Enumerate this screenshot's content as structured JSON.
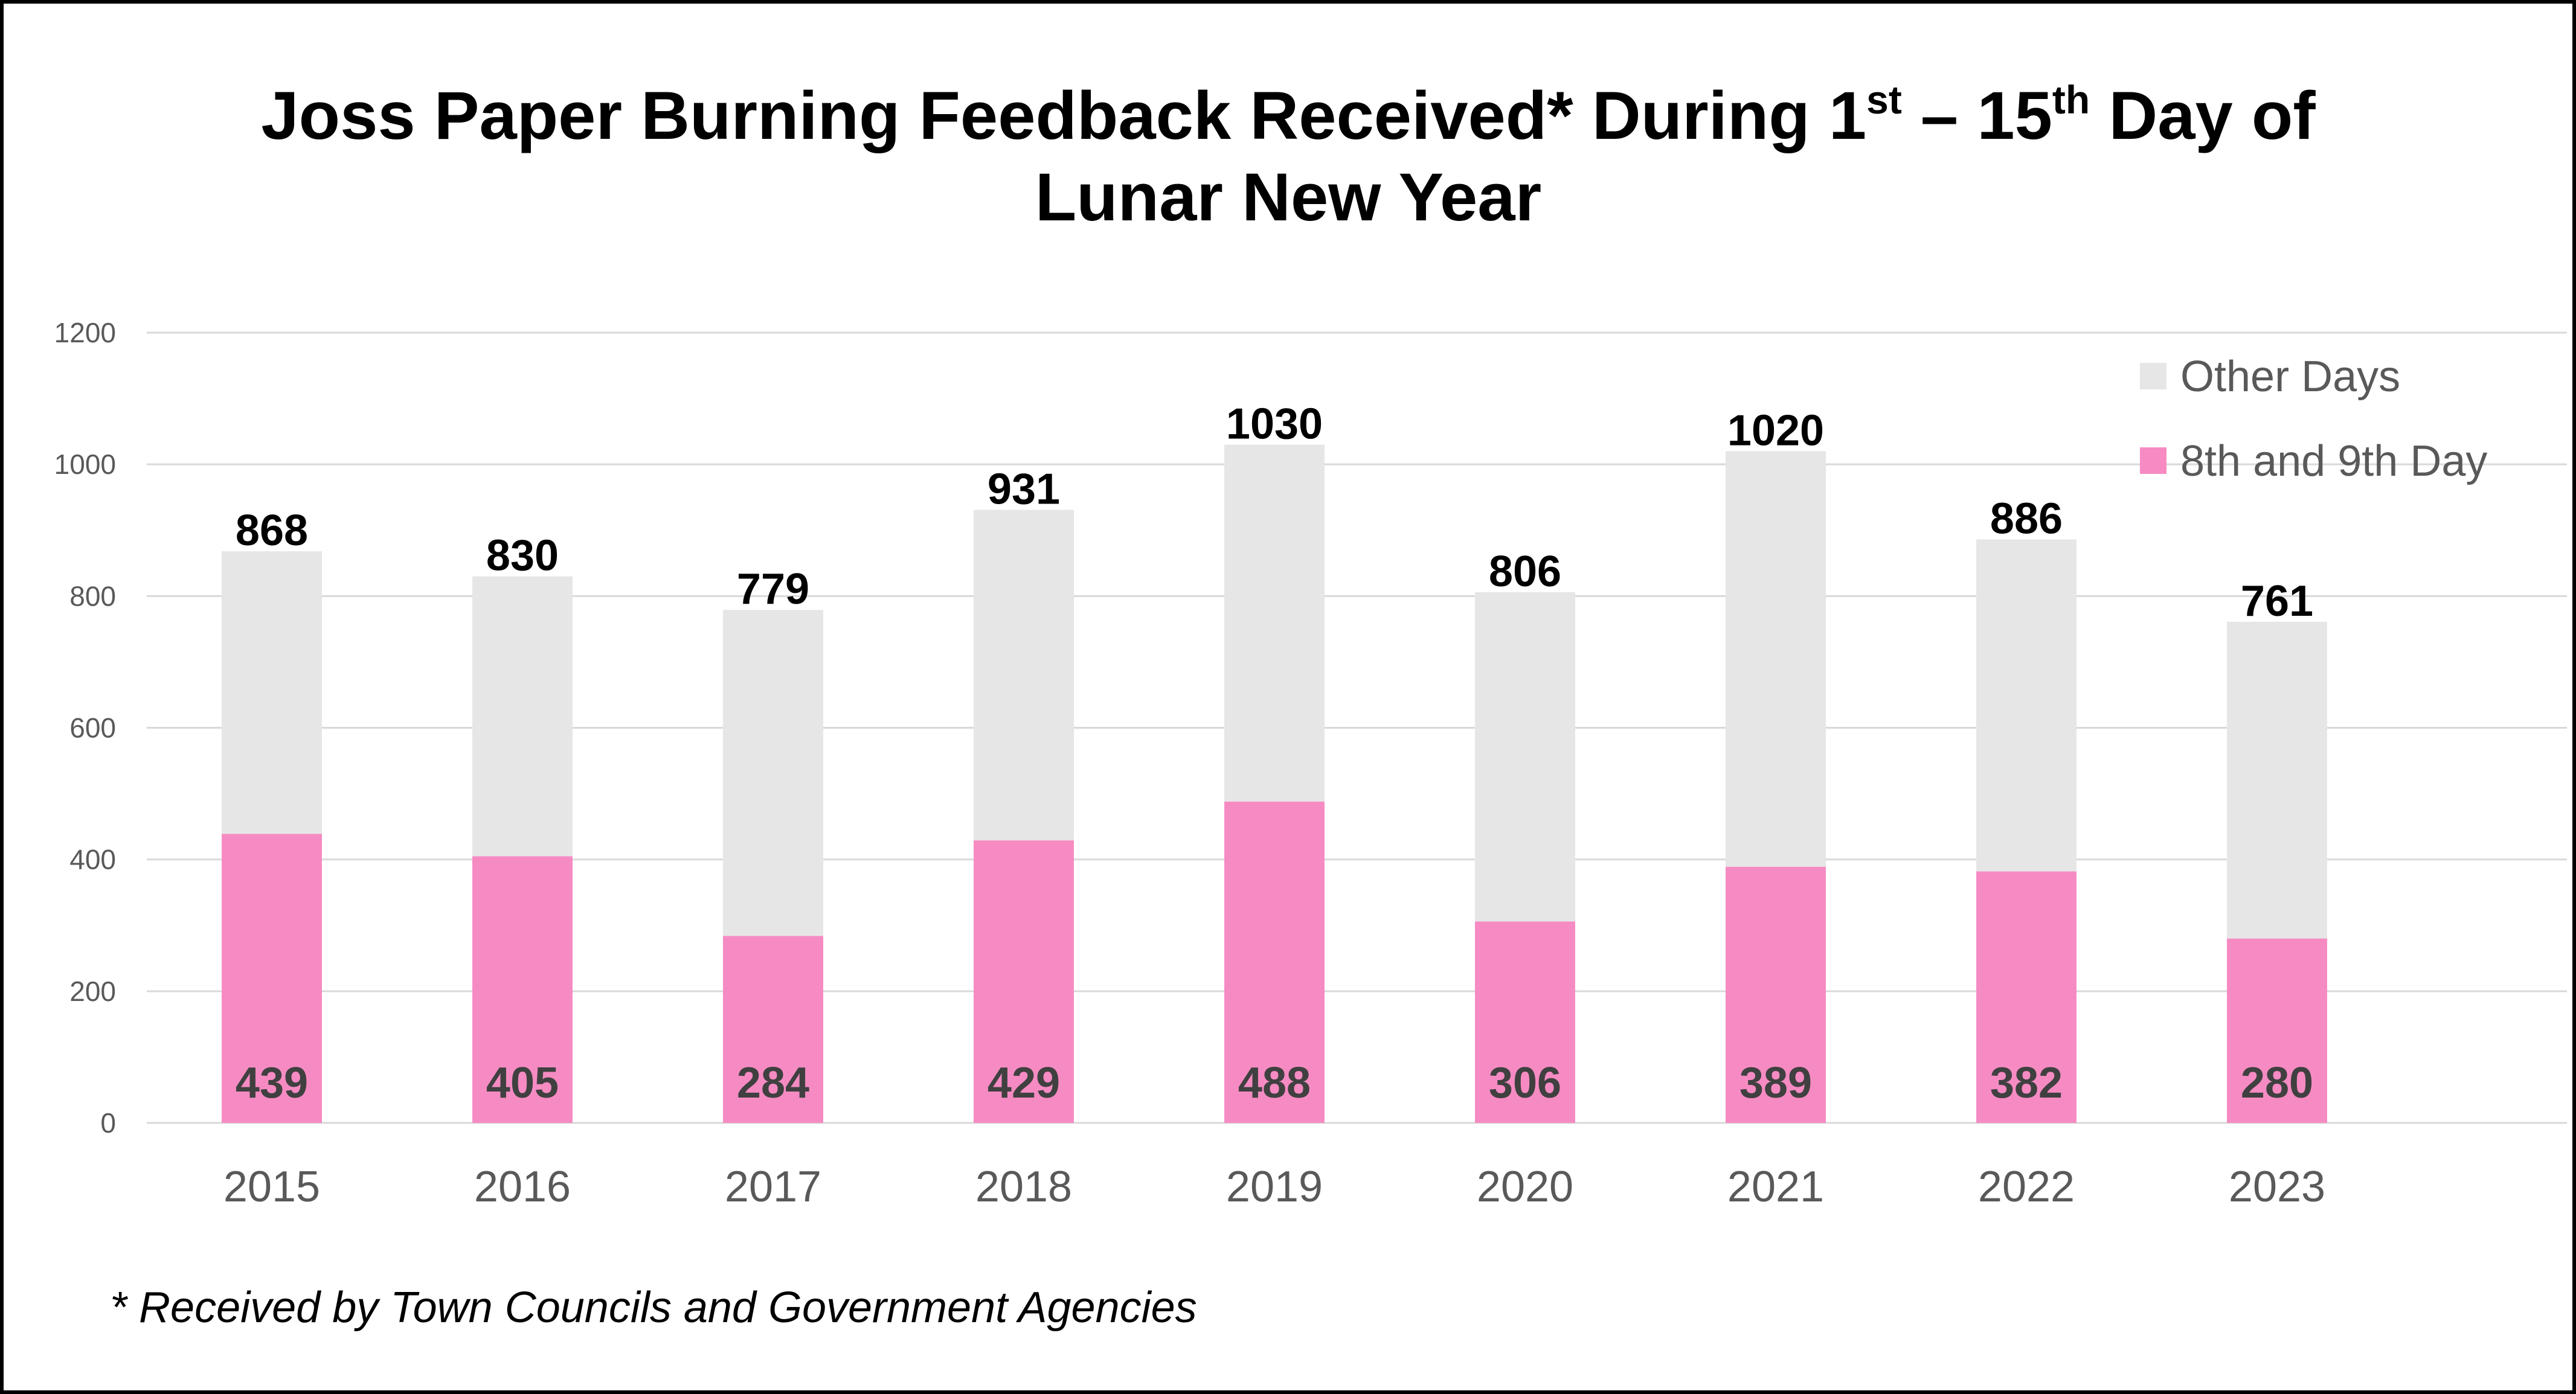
{
  "chart_data": {
    "type": "bar",
    "stacked": true,
    "title": {
      "line1_part1": "Joss Paper Burning Feedback Received* During 1",
      "line1_sup1": "st",
      "line1_part2": " – 15",
      "line1_sup2": "th",
      "line1_part3": " Day of",
      "line2": "Lunar New Year"
    },
    "categories": [
      "2015",
      "2016",
      "2017",
      "2018",
      "2019",
      "2020",
      "2021",
      "2022",
      "2023"
    ],
    "series": [
      {
        "name": "8th and 9th Day",
        "color": "#f68bc3",
        "values": [
          439,
          405,
          284,
          429,
          488,
          306,
          389,
          382,
          280
        ]
      },
      {
        "name": "Other Days",
        "color": "#e6e6e6",
        "values": [
          429,
          425,
          495,
          502,
          542,
          500,
          631,
          504,
          481
        ]
      }
    ],
    "totals": [
      868,
      830,
      779,
      931,
      1030,
      806,
      1020,
      886,
      761
    ],
    "ylim": [
      0,
      1200
    ],
    "yticks": [
      0,
      200,
      400,
      600,
      800,
      1000,
      1200
    ],
    "grid": true,
    "legend_position": "top-right",
    "legend": [
      {
        "label": "Other Days",
        "color": "#e6e6e6"
      },
      {
        "label": "8th and 9th Day",
        "color": "#f68bc3"
      }
    ],
    "footnote": "* Received by Town Councils and Government Agencies"
  }
}
